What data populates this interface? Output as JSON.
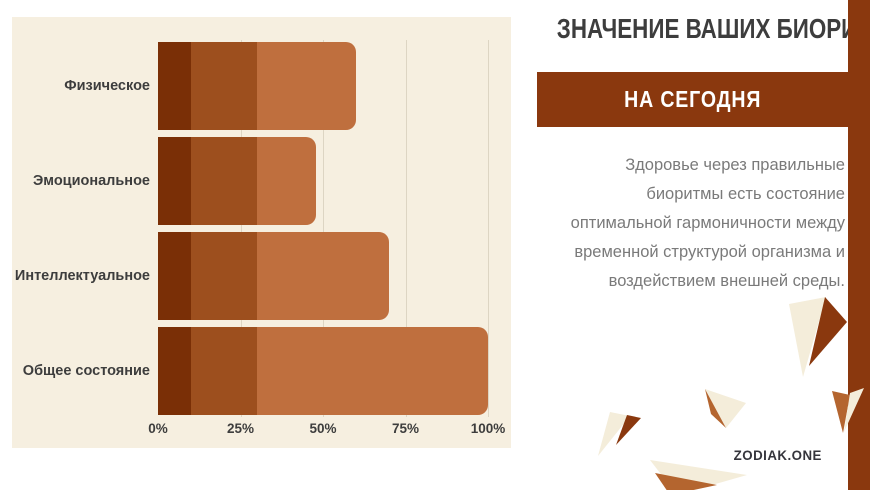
{
  "header": {
    "title": "ЗНАЧЕНИЕ ВАШИХ БИОРИТМОВ",
    "subtitle": "НА СЕГОДНЯ"
  },
  "description": {
    "lines": [
      "Здоровье через правильные",
      "биоритмы есть состояние",
      "оптимальной гармоничности между",
      "временной структурой организма и",
      "воздействием внешней среды."
    ]
  },
  "footer": {
    "brand": "ZODIAK.ONE"
  },
  "chart_data": {
    "type": "bar",
    "orientation": "horizontal",
    "title": "",
    "categories": [
      "Физическое",
      "Эмоциональное",
      "Интеллектуальное",
      "Общее состояние"
    ],
    "values": [
      60,
      48,
      70,
      100
    ],
    "unit": "%",
    "xlim": [
      0,
      100
    ],
    "x_ticks": [
      "0%",
      "25%",
      "50%",
      "75%",
      "100%"
    ],
    "x_tick_values": [
      0,
      25,
      50,
      75,
      100
    ],
    "grid": true,
    "legend": false,
    "background": "#f6efe0",
    "bar_segments": [
      {
        "color": "#7a2f06",
        "end_percent": 10
      },
      {
        "color": "#9d4f1e",
        "end_percent": 30
      },
      {
        "color": "#bf6f3e",
        "end_percent": 100
      }
    ]
  },
  "colors": {
    "accent_dark_brown": "#8a380e",
    "accent_medium_brown": "#b4652f",
    "bar_dark": "#7a2f06",
    "bar_medium": "#9d4f1e",
    "bar_light": "#bf6f3e",
    "panel_cream": "#f6efe0",
    "shard_cream": "#f4edda",
    "gridline": "#ddd5c3",
    "title_text": "#3d3d3d",
    "body_text": "#7a7a7a"
  }
}
